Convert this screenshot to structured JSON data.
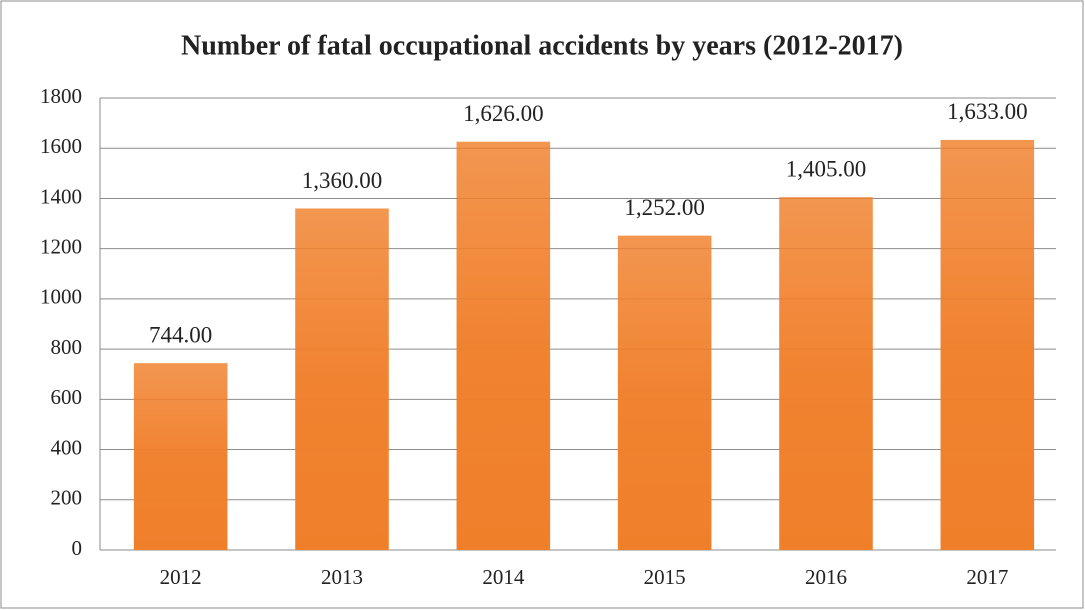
{
  "chart_data": {
    "type": "bar",
    "title": "Number of fatal occupational accidents by years (2012-2017)",
    "categories": [
      "2012",
      "2013",
      "2014",
      "2015",
      "2016",
      "2017"
    ],
    "values": [
      744,
      1360,
      1626,
      1252,
      1405,
      1633
    ],
    "value_labels": [
      "744.00",
      "1,360.00",
      "1,626.00",
      "1,252.00",
      "1,405.00",
      "1,633.00"
    ],
    "color": "#f07f2a",
    "ylim": [
      0,
      1800
    ],
    "yticks": [
      0,
      200,
      400,
      600,
      800,
      1000,
      1200,
      1400,
      1600,
      1800
    ],
    "grid": true
  }
}
